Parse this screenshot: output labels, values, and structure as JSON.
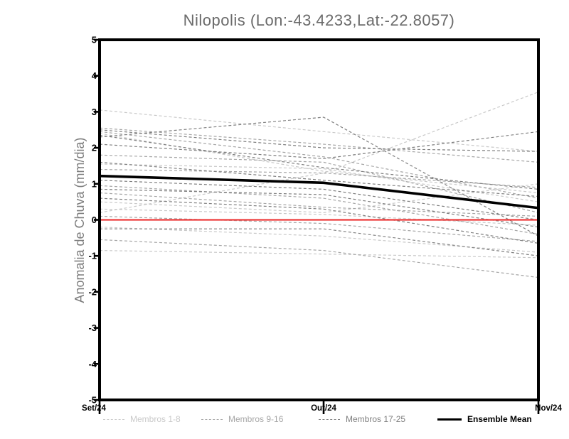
{
  "title": "Nilopolis (Lon:-43.4233,Lat:-22.8057)",
  "axes": {
    "y_label": "Anomalia de Chuva (mm/dia)",
    "y_tick_labels": [
      "5",
      "4",
      "3",
      "2",
      "1",
      "0",
      "-1",
      "-2",
      "-3",
      "-4",
      "-5"
    ],
    "x_tick_labels": [
      "Set/24",
      "Out/24",
      "Nov/24"
    ]
  },
  "legend": [
    {
      "label": "Membros 1-8",
      "color": "#c9c9c9",
      "style": "dashed"
    },
    {
      "label": "Membros 9-16",
      "color": "#a6a6a6",
      "style": "dashed"
    },
    {
      "label": "Membros 17-25",
      "color": "#7f7f7f",
      "style": "dashed"
    },
    {
      "label": "Ensemble Mean",
      "color": "#000000",
      "style": "solid"
    }
  ],
  "chart_data": {
    "type": "line",
    "title": "Nilopolis (Lon:-43.4233,Lat:-22.8057)",
    "xlabel": "",
    "ylabel": "Anomalia de Chuva (mm/dia)",
    "x_categories": [
      "Set/24",
      "Out/24",
      "Nov/24"
    ],
    "ylim": [
      -5,
      5
    ],
    "y_ticks": [
      5,
      4,
      3,
      2,
      1,
      0,
      -1,
      -2,
      -3,
      -4,
      -5
    ],
    "grid": false,
    "legend_position": "bottom",
    "frame_color": "#000000",
    "zero_line": {
      "value": 0,
      "color": "#ee3b3b",
      "style": "solid"
    },
    "series": [
      {
        "name": "Membros 1-8",
        "color": "#c9c9c9",
        "style": "dashed",
        "members": [
          [
            3.05,
            2.45,
            1.9
          ],
          [
            2.4,
            1.35,
            0.75
          ],
          [
            1.55,
            1.42,
            0.5
          ],
          [
            0.2,
            1.3,
            3.55
          ],
          [
            0.5,
            0.2,
            1.0
          ],
          [
            0.3,
            0.15,
            -0.15
          ],
          [
            -0.2,
            -0.45,
            -0.9
          ],
          [
            -0.85,
            -0.95,
            -1.05
          ]
        ]
      },
      {
        "name": "Membros 9-16",
        "color": "#a6a6a6",
        "style": "dashed",
        "members": [
          [
            2.55,
            2.1,
            1.6
          ],
          [
            2.45,
            1.75,
            0.6
          ],
          [
            1.8,
            1.6,
            0.2
          ],
          [
            1.4,
            1.3,
            0.9
          ],
          [
            0.95,
            0.6,
            -0.4
          ],
          [
            0.75,
            0.35,
            0.1
          ],
          [
            0.1,
            -0.1,
            -0.6
          ],
          [
            -0.55,
            -0.85,
            -1.6
          ]
        ]
      },
      {
        "name": "Membros 17-25",
        "color": "#7f7f7f",
        "style": "dashed",
        "members": [
          [
            2.3,
            2.85,
            -0.45
          ],
          [
            2.5,
            2.0,
            1.9
          ],
          [
            2.35,
            1.45,
            0.85
          ],
          [
            2.1,
            1.7,
            2.45
          ],
          [
            1.6,
            1.1,
            0.65
          ],
          [
            1.1,
            0.85,
            0.0
          ],
          [
            0.85,
            0.7,
            -0.2
          ],
          [
            0.6,
            0.3,
            -0.65
          ],
          [
            -0.25,
            -0.25,
            -1.0
          ]
        ]
      },
      {
        "name": "Ensemble Mean",
        "color": "#000000",
        "style": "solid",
        "values": [
          1.22,
          1.03,
          0.33
        ]
      }
    ]
  }
}
